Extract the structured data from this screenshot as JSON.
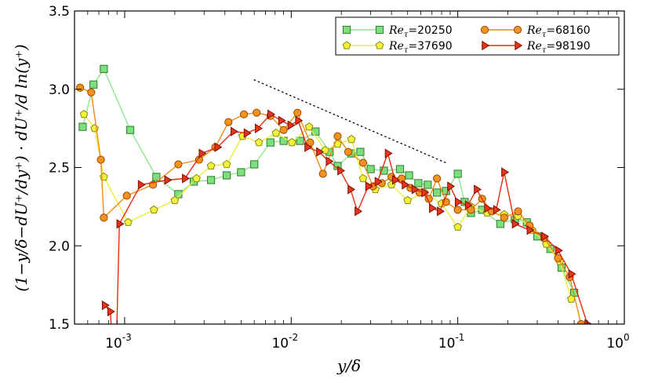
{
  "chart_data": {
    "type": "line",
    "x_scale": "log",
    "xlim": [
      0.0005,
      1.0
    ],
    "ylim": [
      1.5,
      3.5
    ],
    "xlabel": "y/δ",
    "ylabel": "(1−y/δ−dU⁺/dy⁺) · dU⁺/d ln(y⁺)",
    "x_ticks": [
      {
        "value": 0.001,
        "base": "10",
        "exp": "-3"
      },
      {
        "value": 0.01,
        "base": "10",
        "exp": "-2"
      },
      {
        "value": 0.1,
        "base": "10",
        "exp": "-1"
      },
      {
        "value": 1.0,
        "base": "10",
        "exp": "0"
      }
    ],
    "y_ticks": [
      {
        "value": 1.5,
        "label": "1.5"
      },
      {
        "value": 2.0,
        "label": "2.0"
      },
      {
        "value": 2.5,
        "label": "2.5"
      },
      {
        "value": 3.0,
        "label": "3.0"
      },
      {
        "value": 3.5,
        "label": "3.5"
      }
    ],
    "legend_position": "top-right",
    "reference_line": {
      "style": "dotted",
      "x": [
        0.006,
        0.085
      ],
      "y": [
        3.06,
        2.53
      ]
    },
    "series": [
      {
        "name": "Re_τ=20250",
        "label_var": "Re",
        "label_sub": "τ",
        "label_val": "=20250",
        "marker": "square",
        "line_color": "#8ee68e",
        "fill": "#7ce07c",
        "edge": "#2e7a2e",
        "x": [
          0.00056,
          0.00065,
          0.00075,
          0.00108,
          0.00155,
          0.0021,
          0.0026,
          0.0033,
          0.0041,
          0.005,
          0.006,
          0.0075,
          0.009,
          0.0113,
          0.014,
          0.017,
          0.019,
          0.023,
          0.026,
          0.03,
          0.036,
          0.045,
          0.051,
          0.058,
          0.066,
          0.075,
          0.085,
          0.1,
          0.11,
          0.12,
          0.14,
          0.18,
          0.22,
          0.26,
          0.3,
          0.36,
          0.42,
          0.5
        ],
        "y": [
          2.76,
          3.03,
          3.13,
          2.74,
          2.44,
          2.33,
          2.41,
          2.42,
          2.45,
          2.47,
          2.52,
          2.66,
          2.67,
          2.67,
          2.73,
          2.6,
          2.51,
          2.59,
          2.6,
          2.49,
          2.48,
          2.49,
          2.45,
          2.4,
          2.39,
          2.34,
          2.35,
          2.46,
          2.28,
          2.21,
          2.23,
          2.14,
          2.17,
          2.15,
          2.06,
          1.98,
          1.86,
          1.7
        ]
      },
      {
        "name": "Re_τ=37690",
        "label_var": "Re",
        "label_sub": "τ",
        "label_val": "=37690",
        "marker": "pentagon",
        "line_color": "#ecec3c",
        "fill": "#f2f23a",
        "edge": "#8a8a14",
        "x": [
          0.00057,
          0.00066,
          0.00075,
          0.00105,
          0.0015,
          0.002,
          0.0027,
          0.0033,
          0.0041,
          0.0051,
          0.0064,
          0.0081,
          0.0101,
          0.0128,
          0.016,
          0.019,
          0.023,
          0.027,
          0.032,
          0.04,
          0.05,
          0.063,
          0.08,
          0.1,
          0.12,
          0.15,
          0.19,
          0.23,
          0.28,
          0.34,
          0.41,
          0.48
        ],
        "y": [
          2.84,
          2.75,
          2.44,
          2.15,
          2.23,
          2.29,
          2.43,
          2.51,
          2.52,
          2.7,
          2.66,
          2.72,
          2.66,
          2.76,
          2.61,
          2.65,
          2.68,
          2.43,
          2.36,
          2.39,
          2.29,
          2.34,
          2.27,
          2.12,
          2.25,
          2.21,
          2.2,
          2.19,
          2.1,
          2.01,
          1.9,
          1.66
        ]
      },
      {
        "name": "Re_τ=68160",
        "label_var": "Re",
        "label_sub": "τ",
        "label_val": "=68160",
        "marker": "circle",
        "line_color": "#f08c10",
        "fill": "#f39220",
        "edge": "#9a4a00",
        "x": [
          0.00054,
          0.00063,
          0.00072,
          0.00075,
          0.00103,
          0.00148,
          0.0021,
          0.0028,
          0.0035,
          0.0042,
          0.0052,
          0.0062,
          0.0075,
          0.009,
          0.0109,
          0.013,
          0.0155,
          0.019,
          0.022,
          0.027,
          0.031,
          0.035,
          0.04,
          0.046,
          0.052,
          0.059,
          0.067,
          0.075,
          0.085,
          0.1,
          0.12,
          0.14,
          0.16,
          0.19,
          0.23,
          0.27,
          0.33,
          0.4,
          0.47,
          0.55
        ],
        "y": [
          3.01,
          2.98,
          2.55,
          2.18,
          2.32,
          2.39,
          2.52,
          2.55,
          2.63,
          2.79,
          2.84,
          2.85,
          2.83,
          2.74,
          2.85,
          2.66,
          2.46,
          2.7,
          2.6,
          2.53,
          2.38,
          2.4,
          2.44,
          2.43,
          2.37,
          2.34,
          2.3,
          2.43,
          2.28,
          2.23,
          2.23,
          2.3,
          2.22,
          2.18,
          2.22,
          2.13,
          2.05,
          1.92,
          1.8,
          1.5
        ]
      },
      {
        "name": "Re_τ=98190",
        "label_var": "Re",
        "label_sub": "τ",
        "label_val": "=98190",
        "marker": "triangle-right",
        "line_color": "#e82c0c",
        "fill": "#e8341a",
        "edge": "#7a1000",
        "x": [
          0.00076,
          0.00082,
          0.00088,
          0.00093,
          0.00125,
          0.0018,
          0.0023,
          0.0029,
          0.0036,
          0.0045,
          0.0054,
          0.0063,
          0.0075,
          0.0087,
          0.0099,
          0.011,
          0.0125,
          0.0147,
          0.0168,
          0.0197,
          0.0227,
          0.025,
          0.029,
          0.033,
          0.038,
          0.042,
          0.048,
          0.055,
          0.063,
          0.07,
          0.078,
          0.09,
          0.1,
          0.115,
          0.13,
          0.15,
          0.17,
          0.19,
          0.22,
          0.27,
          0.33,
          0.4,
          0.48,
          0.6
        ],
        "y": [
          1.62,
          1.58,
          1.1,
          2.14,
          2.39,
          2.42,
          2.43,
          2.59,
          2.63,
          2.73,
          2.72,
          2.75,
          2.84,
          2.8,
          2.77,
          2.8,
          2.63,
          2.6,
          2.54,
          2.48,
          2.36,
          2.22,
          2.38,
          2.41,
          2.59,
          2.42,
          2.39,
          2.36,
          2.34,
          2.24,
          2.22,
          2.38,
          2.28,
          2.26,
          2.36,
          2.24,
          2.23,
          2.47,
          2.14,
          2.1,
          2.06,
          1.97,
          1.82,
          1.5
        ]
      }
    ]
  }
}
